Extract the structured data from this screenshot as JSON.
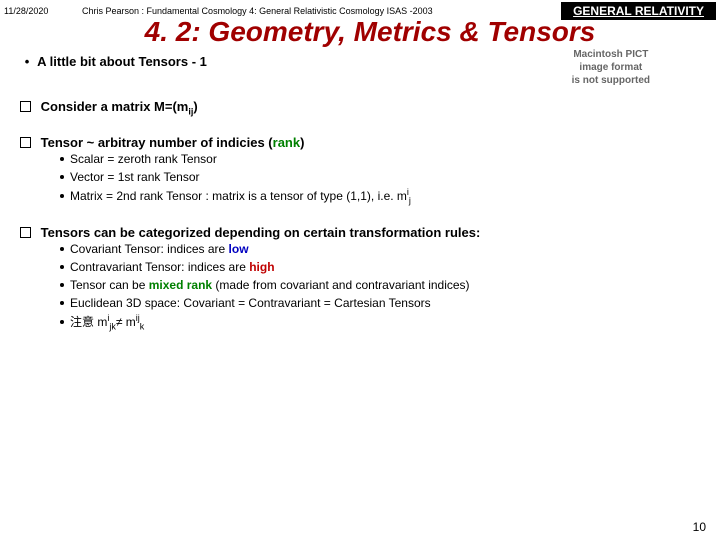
{
  "header": {
    "date": "11/28/2020",
    "credit": "Chris Pearson : Fundamental Cosmology 4: General Relativistic Cosmology  ISAS -2003",
    "badge": "GENERAL RELATIVITY"
  },
  "title": "4. 2: Geometry, Metrics & Tensors",
  "section_head": "A little bit about Tensors - 1",
  "placeholder": {
    "l1": "Macintosh PICT",
    "l2": "image format",
    "l3": "is not supported"
  },
  "b1": {
    "pre": "Consider a matrix M=(m",
    "sub": "ij",
    "post": ")"
  },
  "b2": {
    "lead": "Tensor ~ arbitray number of indicies (",
    "rank": "rank",
    "close": ")",
    "s1": "Scalar = zeroth rank Tensor",
    "s2": "Vector = 1st rank Tensor",
    "s3_pre": "Matrix = 2nd rank Tensor :   matrix is a tensor of type (1,1), i.e. m",
    "s3_sup": "i",
    "s3_sub": "j"
  },
  "b3": {
    "lead": "Tensors can be categorized depending on certain transformation rules:",
    "s1_pre": "Covariant Tensor: indices are ",
    "s1_low": "low",
    "s2_pre": "Contravariant Tensor: indices are ",
    "s2_high": "high",
    "s3_pre": "Tensor can be ",
    "s3_mixed": "mixed rank",
    "s3_post": " (made from covariant and contravariant indices)",
    "s4": "Euclidean 3D space: Covariant = Contravariant = Cartesian Tensors",
    "s5_pre": "注意   m",
    "s5_sup1": "i",
    "s5_sub1": "jk",
    "s5_neq": "≠",
    "s5_m2": " m",
    "s5_sup2": "ij",
    "s5_sub2": "k"
  },
  "pagenum": "10"
}
